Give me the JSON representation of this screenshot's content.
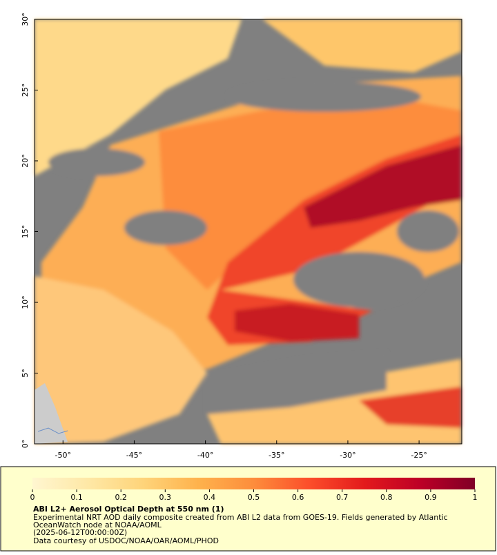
{
  "map": {
    "xlim": [
      -52,
      -22
    ],
    "ylim": [
      0,
      30
    ],
    "xticks": [
      {
        "value": -50,
        "label": "-50°"
      },
      {
        "value": -45,
        "label": "-45°"
      },
      {
        "value": -40,
        "label": "-40°"
      },
      {
        "value": -35,
        "label": "-35°"
      },
      {
        "value": -30,
        "label": "-30°"
      },
      {
        "value": -25,
        "label": "-25°"
      }
    ],
    "yticks": [
      {
        "value": 0,
        "label": "0°"
      },
      {
        "value": 5,
        "label": "5°"
      },
      {
        "value": 10,
        "label": "10°"
      },
      {
        "value": 15,
        "label": "15°"
      },
      {
        "value": 20,
        "label": "20°"
      },
      {
        "value": 25,
        "label": "25°"
      },
      {
        "value": 30,
        "label": "30°"
      }
    ]
  },
  "colorbar": {
    "range": [
      0,
      1
    ],
    "ticks": [
      0,
      0.1,
      0.2,
      0.3,
      0.4,
      0.5,
      0.6,
      0.7,
      0.8,
      0.9,
      1
    ],
    "colors": [
      "#fff6d0",
      "#fee8a6",
      "#fed47a",
      "#feb24c",
      "#fd8d3c",
      "#fc4e2a",
      "#e31a1c",
      "#bd0026",
      "#800026"
    ]
  },
  "caption": {
    "title": "ABI L2+ Aerosol Optical Depth at 550 nm (1)",
    "lines": [
      "Experimental NRT AOD daily composite created from ABI L2 data from GOES-19. Fields generated by Atlantic",
      "OceanWatch node at NOAA/AOML",
      "(2025-06-12T00:00:00Z)",
      "Data courtesy of USDOC/NOAA/OAR/AOML/PHOD"
    ]
  }
}
